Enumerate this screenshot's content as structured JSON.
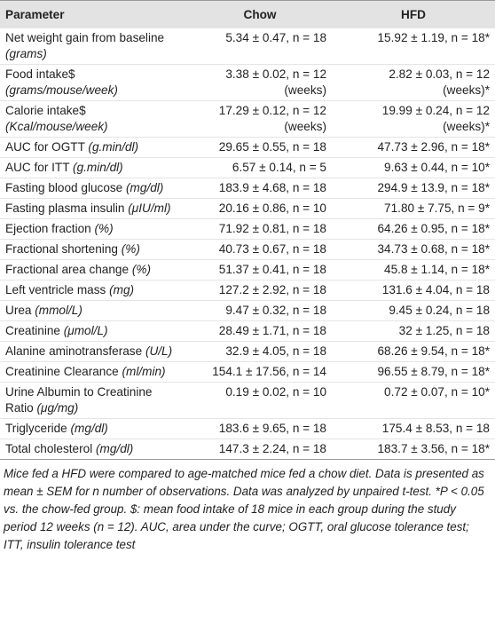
{
  "table": {
    "columns": [
      "Parameter",
      "Chow",
      "HFD"
    ],
    "rows": [
      {
        "parameter": "Net weight gain from baseline",
        "unit": "(grams)",
        "chow": [
          "5.34 ± 0.47, n = 18"
        ],
        "hfd": [
          "15.92 ± 1.19, n = 18*"
        ]
      },
      {
        "parameter": "Food intake$",
        "unit": "(grams/mouse/week)",
        "chow": [
          "3.38 ± 0.02, n = 12",
          "(weeks)"
        ],
        "hfd": [
          "2.82 ± 0.03, n = 12",
          "(weeks)*"
        ]
      },
      {
        "parameter": "Calorie intake$",
        "unit": "(Kcal/mouse/week)",
        "chow": [
          "17.29 ± 0.12, n = 12",
          "(weeks)"
        ],
        "hfd": [
          "19.99 ± 0.24, n = 12",
          "(weeks)*"
        ]
      },
      {
        "parameter": "AUC for OGTT",
        "unit": "(g.min/dl)",
        "chow": [
          "29.65 ± 0.55, n = 18"
        ],
        "hfd": [
          "47.73 ± 2.96, n = 18*"
        ]
      },
      {
        "parameter": "AUC for ITT",
        "unit": "(g.min/dl)",
        "chow": [
          "6.57 ± 0.14, n = 5"
        ],
        "hfd": [
          "9.63 ± 0.44, n = 10*"
        ]
      },
      {
        "parameter": "Fasting blood glucose",
        "unit": "(mg/dl)",
        "chow": [
          "183.9 ± 4.68, n = 18"
        ],
        "hfd": [
          "294.9 ± 13.9, n = 18*"
        ]
      },
      {
        "parameter": "Fasting plasma insulin",
        "unit": "(μIU/ml)",
        "chow": [
          "20.16 ± 0.86, n = 10"
        ],
        "hfd": [
          "71.80 ± 7.75, n = 9*"
        ]
      },
      {
        "parameter": "Ejection fraction",
        "unit": "(%)",
        "chow": [
          "71.92 ± 0.81, n = 18"
        ],
        "hfd": [
          "64.26 ± 0.95, n = 18*"
        ]
      },
      {
        "parameter": "Fractional shortening",
        "unit": "(%)",
        "chow": [
          "40.73 ± 0.67, n = 18"
        ],
        "hfd": [
          "34.73 ± 0.68, n = 18*"
        ]
      },
      {
        "parameter": "Fractional area change",
        "unit": "(%)",
        "chow": [
          "51.37 ± 0.41, n = 18"
        ],
        "hfd": [
          "45.8 ± 1.14, n = 18*"
        ]
      },
      {
        "parameter": "Left ventricle mass",
        "unit": "(mg)",
        "chow": [
          "127.2 ± 2.92, n = 18"
        ],
        "hfd": [
          "131.6 ± 4.04, n = 18"
        ]
      },
      {
        "parameter": "Urea",
        "unit": "(mmol/L)",
        "chow": [
          "9.47 ± 0.32, n = 18"
        ],
        "hfd": [
          "9.45 ± 0.24, n = 18"
        ]
      },
      {
        "parameter": "Creatinine",
        "unit": "(μmol/L)",
        "chow": [
          "28.49 ± 1.71, n = 18"
        ],
        "hfd": [
          "32 ± 1.25, n = 18"
        ]
      },
      {
        "parameter": "Alanine aminotransferase",
        "unit": "(U/L)",
        "chow": [
          "32.9 ± 4.05, n = 18"
        ],
        "hfd": [
          "68.26 ± 9.54, n = 18*"
        ]
      },
      {
        "parameter": "Creatinine Clearance",
        "unit": "(ml/min)",
        "chow": [
          "154.1 ± 17.56, n = 14"
        ],
        "hfd": [
          "96.55 ± 8.79, n = 18*"
        ]
      },
      {
        "parameter": "Urine Albumin to Creatinine Ratio",
        "unit": "(μg/mg)",
        "chow": [
          "0.19 ± 0.02, n = 10"
        ],
        "hfd": [
          "0.72 ± 0.07, n = 10*"
        ]
      },
      {
        "parameter": "Triglyceride",
        "unit": "(mg/dl)",
        "chow": [
          "183.6 ± 9.65, n = 18"
        ],
        "hfd": [
          "175.4 ± 8.53, n = 18"
        ]
      },
      {
        "parameter": "Total cholesterol",
        "unit": "(mg/dl)",
        "chow": [
          "147.3 ± 2.24, n = 18"
        ],
        "hfd": [
          "183.7 ± 3.56, n = 18*"
        ]
      }
    ]
  },
  "footnote": "Mice fed a HFD were compared to age-matched mice fed a chow diet. Data is presented as mean ± SEM for n number of observations. Data was analyzed by unpaired t-test. *P < 0.05 vs. the chow-fed group. $: mean food intake of 18 mice in each group during the study period 12 weeks (n = 12). AUC, area under the curve; OGTT, oral glucose tolerance test; ITT, insulin tolerance test"
}
